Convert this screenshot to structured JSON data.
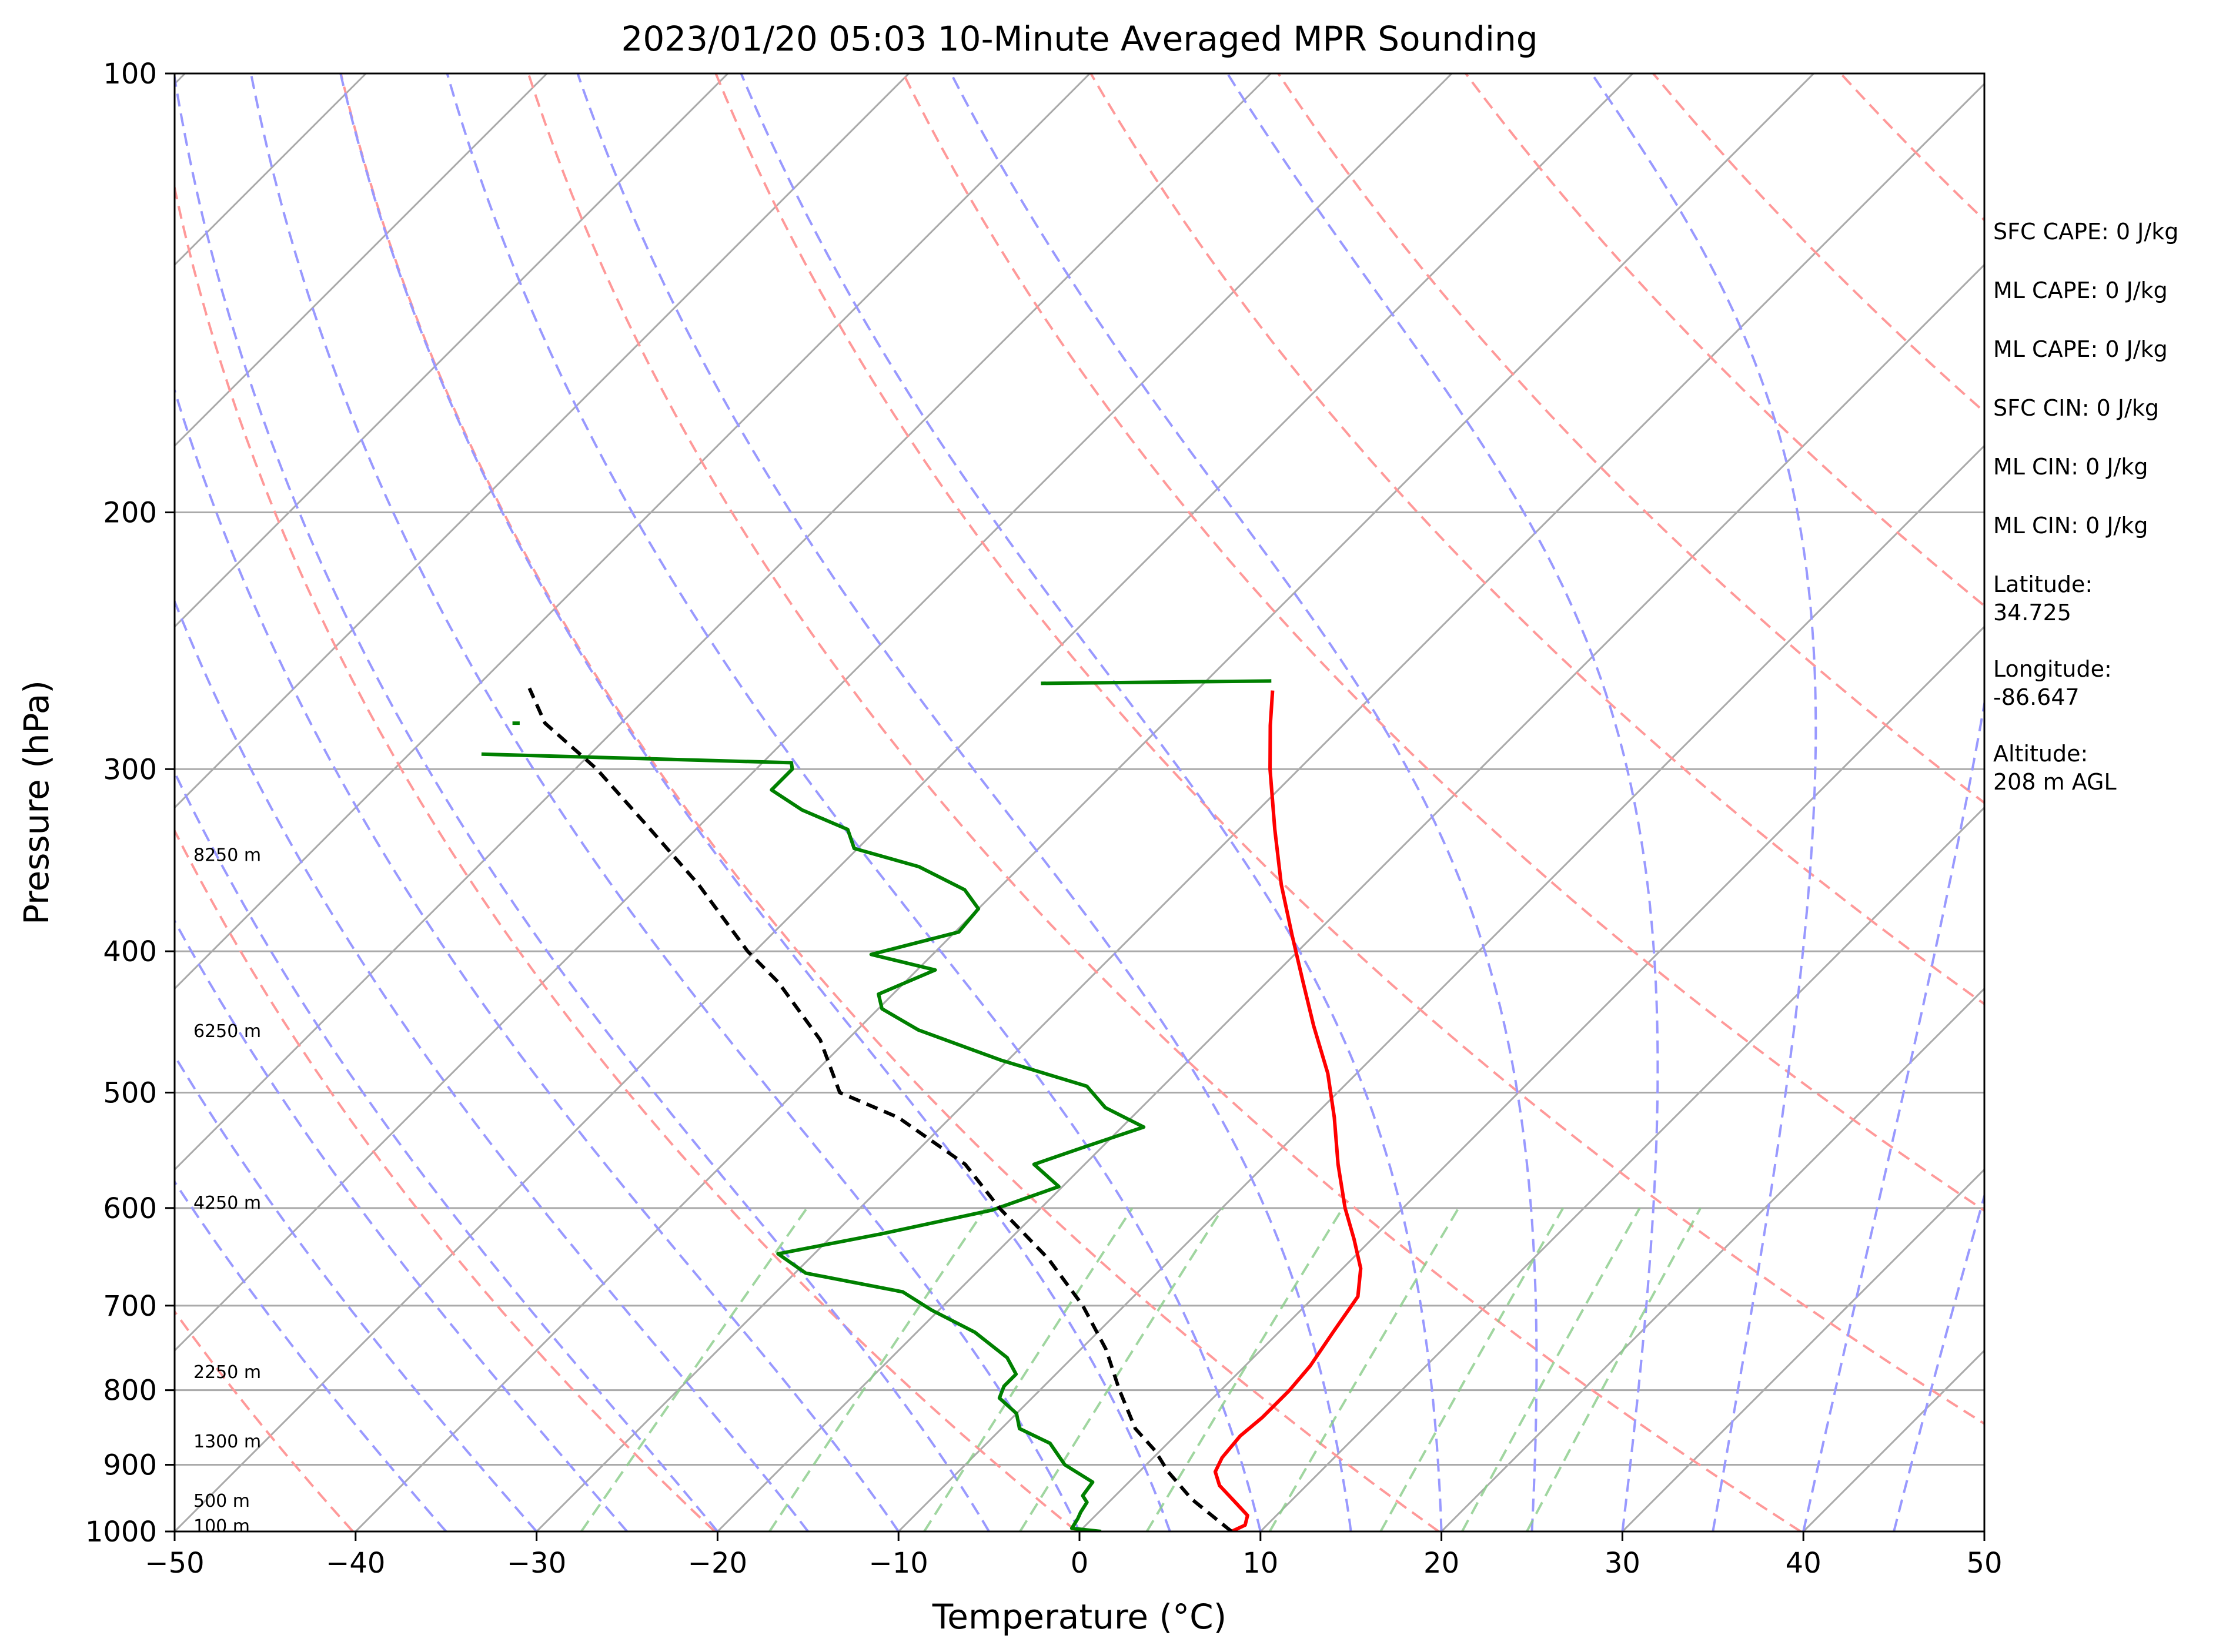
{
  "chart_data": {
    "type": "line",
    "title": "2023/01/20 05:03 10-Minute Averaged MPR Sounding",
    "xlabel": "Temperature (°C)",
    "ylabel": "Pressure (hPa)",
    "xlim": [
      -50,
      50
    ],
    "ylim": [
      1000,
      100
    ],
    "y_scale": "log",
    "skew": "skew-T",
    "grid": true,
    "x_ticks": [
      -50,
      -40,
      -30,
      -20,
      -10,
      0,
      10,
      20,
      30,
      40,
      50
    ],
    "x_tick_labels": [
      "−50",
      "−40",
      "−30",
      "−20",
      "−10",
      "0",
      "10",
      "20",
      "30",
      "40",
      "50"
    ],
    "y_ticks": [
      100,
      200,
      300,
      400,
      500,
      600,
      700,
      800,
      900,
      1000
    ],
    "y_tick_labels": [
      "100",
      "200",
      "300",
      "400",
      "500",
      "600",
      "700",
      "800",
      "900",
      "1000"
    ],
    "series": [
      {
        "role": "temperature",
        "color": "#ff0000",
        "points": [
          [
            8.4,
            1000
          ],
          [
            8.8,
            990
          ],
          [
            8.4,
            975
          ],
          [
            7.0,
            955
          ],
          [
            5.2,
            930
          ],
          [
            4.2,
            910
          ],
          [
            3.8,
            890
          ],
          [
            3.6,
            860
          ],
          [
            3.8,
            835
          ],
          [
            3.8,
            800
          ],
          [
            3.6,
            770
          ],
          [
            3.0,
            730
          ],
          [
            2.4,
            690
          ],
          [
            1.0,
            660
          ],
          [
            -1.0,
            630
          ],
          [
            -3.2,
            600
          ],
          [
            -6.0,
            560
          ],
          [
            -8.8,
            520
          ],
          [
            -11.6,
            485
          ],
          [
            -15.0,
            450
          ],
          [
            -18.0,
            420
          ],
          [
            -21.2,
            390
          ],
          [
            -24.6,
            360
          ],
          [
            -28.0,
            330
          ],
          [
            -31.6,
            300
          ],
          [
            -34.0,
            280
          ],
          [
            -35.8,
            265
          ]
        ]
      },
      {
        "role": "dewpoint",
        "color": "#008000",
        "points": [
          [
            1.2,
            1000
          ],
          [
            -0.6,
            995
          ],
          [
            -0.8,
            980
          ],
          [
            -1.0,
            970
          ],
          [
            -1.2,
            955
          ],
          [
            -1.8,
            945
          ],
          [
            -2.0,
            925
          ],
          [
            -4.5,
            900
          ],
          [
            -6.5,
            870
          ],
          [
            -9.0,
            850
          ],
          [
            -10.0,
            830
          ],
          [
            -11.8,
            810
          ],
          [
            -12.2,
            795
          ],
          [
            -12.2,
            780
          ],
          [
            -13.6,
            760
          ],
          [
            -16.8,
            730
          ],
          [
            -20.4,
            705
          ],
          [
            -23.0,
            685
          ],
          [
            -29.4,
            665
          ],
          [
            -32.0,
            645
          ],
          [
            -27.4,
            625
          ],
          [
            -22.6,
            602
          ],
          [
            -20.2,
            580
          ],
          [
            -22.8,
            560
          ],
          [
            -21.0,
            545
          ],
          [
            -18.8,
            528
          ],
          [
            -22.0,
            512
          ],
          [
            -24.2,
            495
          ],
          [
            -30.4,
            475
          ],
          [
            -36.6,
            453
          ],
          [
            -39.8,
            438
          ],
          [
            -40.8,
            428
          ],
          [
            -39.0,
            412
          ],
          [
            -43.4,
            402
          ],
          [
            -39.8,
            388
          ],
          [
            -40.0,
            374
          ],
          [
            -41.8,
            363
          ],
          [
            -45.6,
            350
          ],
          [
            -50.2,
            340
          ],
          [
            -51.6,
            330
          ],
          [
            -55.2,
            320
          ],
          [
            -58.0,
            310
          ],
          [
            -58.0,
            300
          ],
          [
            -58.4,
            297
          ],
          [
            -76.0,
            293
          ]
        ]
      },
      {
        "role": "dewpoint-fragment",
        "color": "#008000",
        "points": [
          [
            -49.0,
            262
          ],
          [
            -36.4,
            261
          ]
        ]
      },
      {
        "role": "dewpoint-fragment",
        "color": "#008000",
        "points": [
          [
            -76.0,
            279
          ],
          [
            -75.6,
            279
          ]
        ]
      },
      {
        "role": "parcel",
        "color": "#000000",
        "style": "dashed",
        "points": [
          [
            8.4,
            1000
          ],
          [
            4.4,
            950
          ],
          [
            1.6,
            910
          ],
          [
            -0.3,
            880
          ],
          [
            -2.6,
            850
          ],
          [
            -5.6,
            800
          ],
          [
            -8.6,
            750
          ],
          [
            -12.3,
            700
          ],
          [
            -16.8,
            650
          ],
          [
            -22.3,
            600
          ],
          [
            -26.6,
            560
          ],
          [
            -32.9,
            520
          ],
          [
            -37.5,
            500
          ],
          [
            -41.5,
            460
          ],
          [
            -47.0,
            420
          ],
          [
            -50.4,
            400
          ],
          [
            -56.8,
            360
          ],
          [
            -62.5,
            330
          ],
          [
            -68.8,
            300
          ],
          [
            -74.2,
            279
          ],
          [
            -77.0,
            264
          ]
        ]
      }
    ],
    "reference_lines": {
      "isotherms": {
        "color": "#aaaaaa",
        "style": "solid",
        "values": [
          -130,
          -120,
          -110,
          -100,
          -90,
          -80,
          -70,
          -60,
          -50,
          -40,
          -30,
          -20,
          -10,
          0,
          10,
          20,
          30,
          40,
          50
        ]
      },
      "dry_adiabats": {
        "color": "#ff9999",
        "style": "dashed",
        "theta_K": [
          213,
          233,
          253,
          273,
          293,
          313,
          333,
          353,
          373,
          393,
          413,
          433,
          453
        ]
      },
      "moist_adiabats": {
        "color": "#9999ff",
        "style": "dashed",
        "start_T_C": [
          -35,
          -30,
          -25,
          -20,
          -15,
          -10,
          -5,
          0,
          5,
          10,
          15,
          20,
          25,
          30,
          35,
          40,
          45
        ]
      },
      "mixing_ratio_lines": {
        "color": "#88cc88",
        "style": "dashed",
        "g_per_kg": [
          0.4,
          1,
          2,
          3,
          5,
          8,
          12,
          16,
          20
        ],
        "top_pressure": 600
      }
    },
    "height_labels": [
      {
        "text": "100 m",
        "pressure": 990
      },
      {
        "text": "500 m",
        "pressure": 951
      },
      {
        "text": "1300 m",
        "pressure": 866
      },
      {
        "text": "2250 m",
        "pressure": 776
      },
      {
        "text": "4250 m",
        "pressure": 594
      },
      {
        "text": "6250 m",
        "pressure": 453
      },
      {
        "text": "8250 m",
        "pressure": 343
      }
    ]
  },
  "info_panel": {
    "sfc_cape": "SFC CAPE: 0 J/kg",
    "ml_cape": "ML CAPE: 0 J/kg",
    "ml_cape_2": "ML CAPE: 0 J/kg",
    "sfc_cin": "SFC CIN: 0 J/kg",
    "ml_cin": "ML CIN: 0 J/kg",
    "ml_cin_2": "ML CIN: 0 J/kg",
    "latitude_label": "Latitude:",
    "latitude_value": "34.725",
    "longitude_label": "Longitude:",
    "longitude_value": "-86.647",
    "altitude_label": "Altitude:",
    "altitude_value": "208 m AGL"
  }
}
